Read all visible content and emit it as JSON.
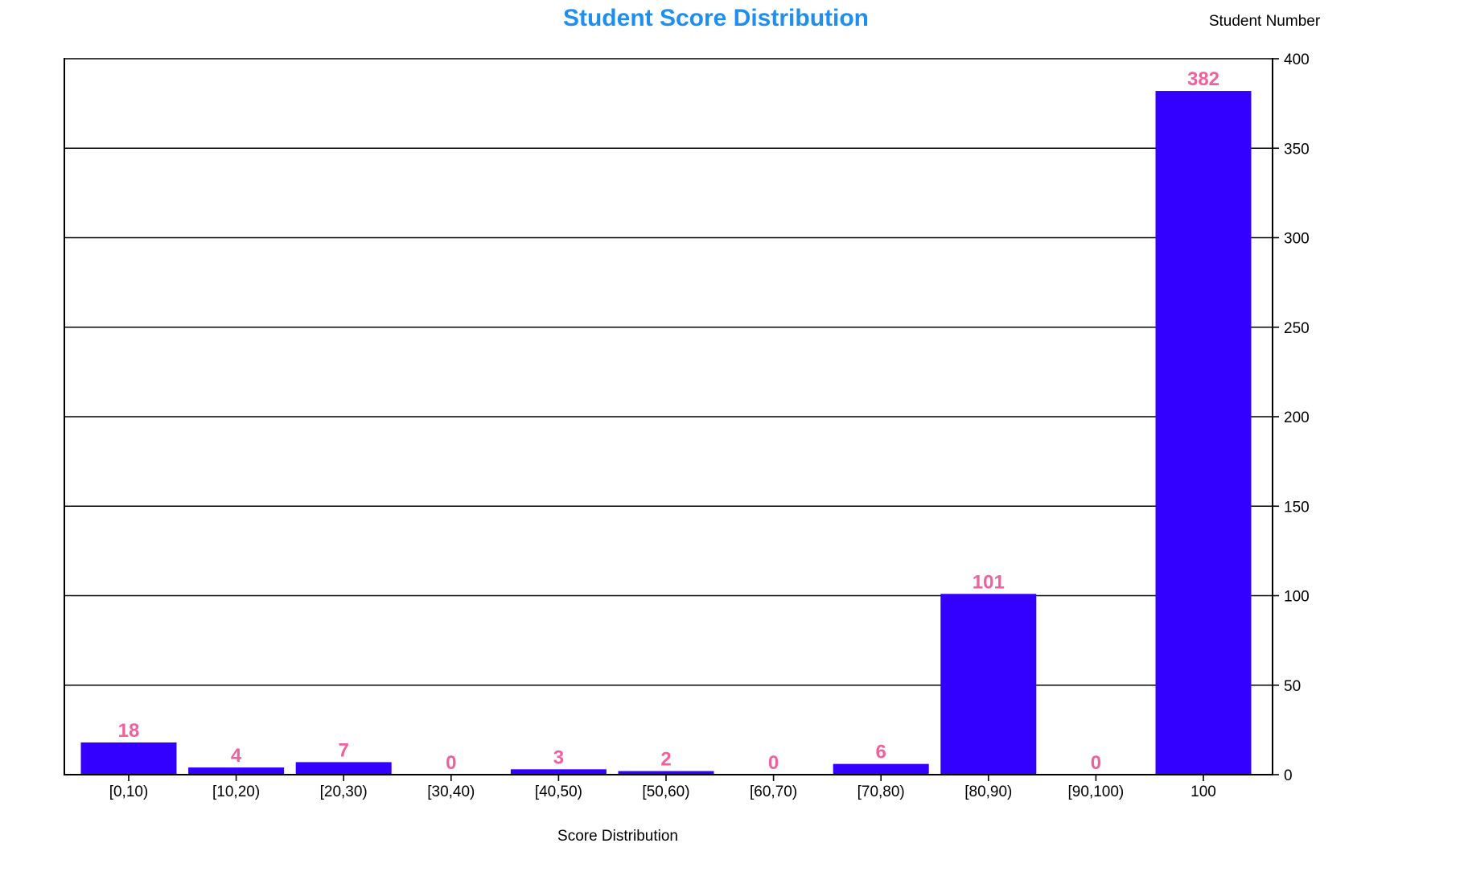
{
  "chart_data": {
    "type": "bar",
    "title": "Student Score Distribution",
    "xlabel": "Score Distribution",
    "ylabel": "Student Number",
    "categories": [
      "[0,10)",
      "[10,20)",
      "[20,30)",
      "[30,40)",
      "[40,50)",
      "[50,60)",
      "[60,70)",
      "[70,80)",
      "[80,90)",
      "[90,100)",
      "100"
    ],
    "values": [
      18,
      4,
      7,
      0,
      3,
      2,
      0,
      6,
      101,
      0,
      382
    ],
    "ylim": [
      0,
      400
    ],
    "yticks": [
      0,
      50,
      100,
      150,
      200,
      250,
      300,
      350,
      400
    ],
    "y_axis_side": "right",
    "grid": true,
    "bar_color": "#3300ff",
    "label_color": "#f0609e",
    "title_color": "#1e8ff0"
  }
}
